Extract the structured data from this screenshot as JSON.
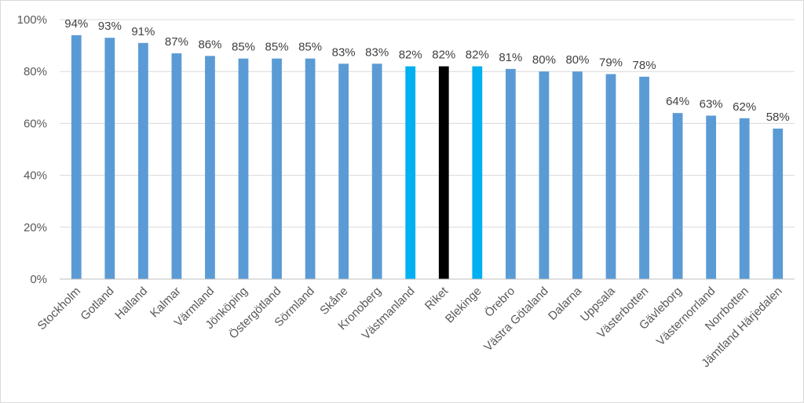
{
  "chart_data": {
    "type": "bar",
    "categories": [
      "Stockholm",
      "Gotland",
      "Halland",
      "Kalmar",
      "Värmland",
      "Jönköping",
      "Östergötland",
      "Sörmland",
      "Skåne",
      "Kronoberg",
      "Västmanland",
      "Riket",
      "Blekinge",
      "Örebro",
      "Västra Götaland",
      "Dalarna",
      "Uppsala",
      "Västerbotten",
      "Gävleborg",
      "Västernorrland",
      "Norrbotten",
      "Jämtland Härjedalen"
    ],
    "values": [
      94,
      93,
      91,
      87,
      86,
      85,
      85,
      85,
      83,
      83,
      82,
      82,
      82,
      81,
      80,
      80,
      79,
      78,
      64,
      63,
      62,
      58
    ],
    "data_labels": [
      "94%",
      "93%",
      "91%",
      "87%",
      "86%",
      "85%",
      "85%",
      "85%",
      "83%",
      "83%",
      "82%",
      "82%",
      "82%",
      "81%",
      "80%",
      "80%",
      "79%",
      "78%",
      "64%",
      "63%",
      "62%",
      "58%"
    ],
    "bar_colors": [
      "#5b9bd5",
      "#5b9bd5",
      "#5b9bd5",
      "#5b9bd5",
      "#5b9bd5",
      "#5b9bd5",
      "#5b9bd5",
      "#5b9bd5",
      "#5b9bd5",
      "#5b9bd5",
      "#00b0f0",
      "#000000",
      "#00b0f0",
      "#5b9bd5",
      "#5b9bd5",
      "#5b9bd5",
      "#5b9bd5",
      "#5b9bd5",
      "#5b9bd5",
      "#5b9bd5",
      "#5b9bd5",
      "#5b9bd5"
    ],
    "yticks": [
      "0%",
      "20%",
      "40%",
      "60%",
      "80%",
      "100%"
    ],
    "ytick_values": [
      0,
      20,
      40,
      60,
      80,
      100
    ],
    "ylim": [
      0,
      100
    ],
    "grid": true,
    "gridline_color": "#d9d9d9",
    "title": "",
    "xlabel": "",
    "ylabel": ""
  }
}
